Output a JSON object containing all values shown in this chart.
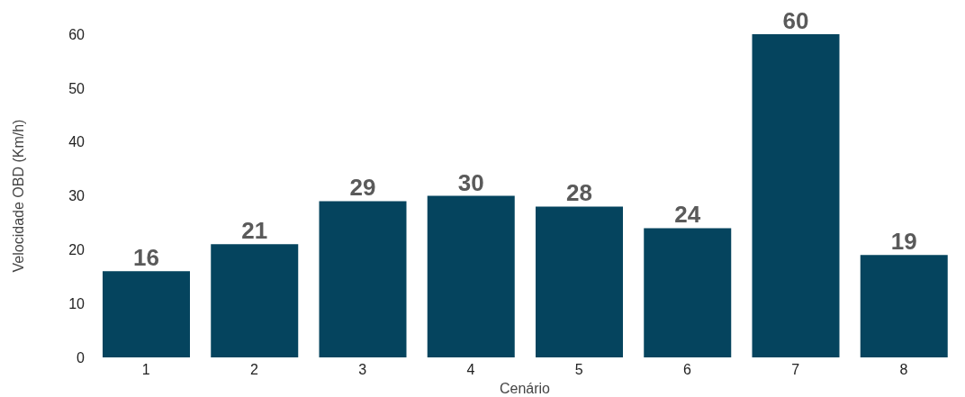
{
  "chart_data": {
    "type": "bar",
    "xlabel": "Cenário",
    "ylabel": "Velocidade OBD (Km/h)",
    "categories": [
      "1",
      "2",
      "3",
      "4",
      "5",
      "6",
      "7",
      "8"
    ],
    "values": [
      16,
      21,
      29,
      30,
      28,
      24,
      60,
      19
    ],
    "color": "#05445e",
    "ylim": [
      0,
      60
    ],
    "yticks": [
      0,
      10,
      20,
      30,
      40,
      50,
      60
    ],
    "grid": false,
    "data_labels": true
  }
}
